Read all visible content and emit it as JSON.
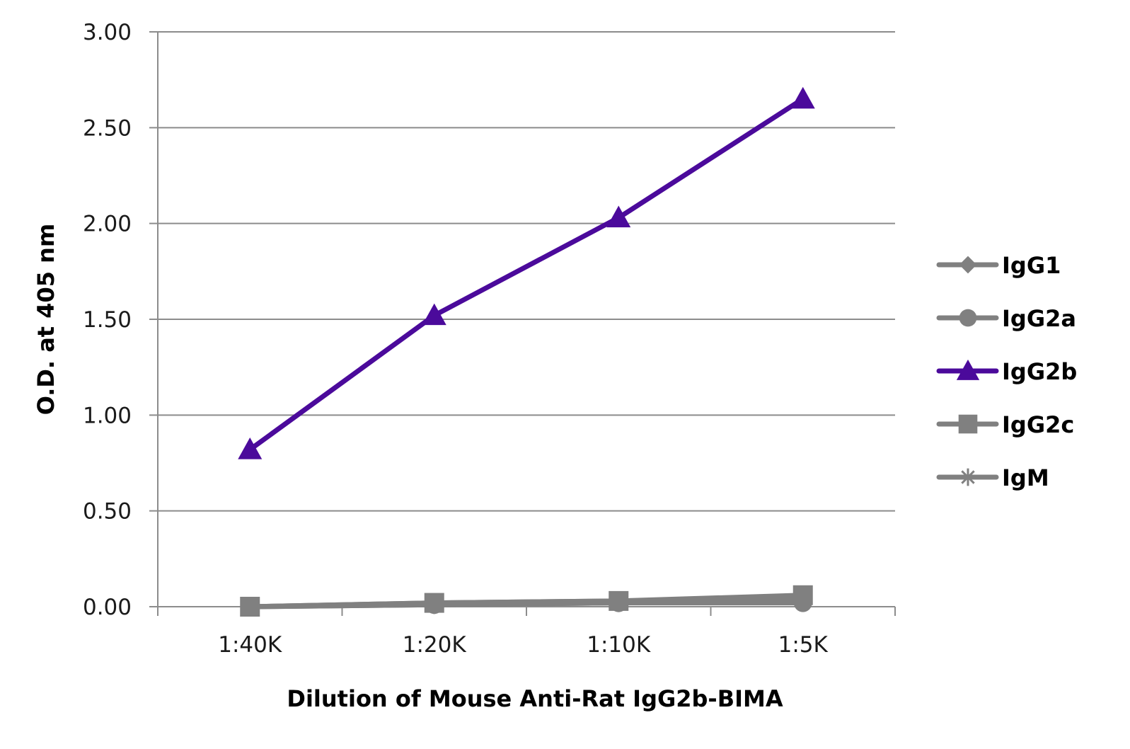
{
  "chart_data": {
    "type": "line",
    "title": "",
    "xlabel": "Dilution of Mouse Anti-Rat IgG2b-BIMA",
    "ylabel": "O.D. at 405 nm",
    "categories": [
      "1:40K",
      "1:20K",
      "1:10K",
      "1:5K"
    ],
    "ylim": [
      0,
      3.0
    ],
    "yticks": [
      "0.00",
      "0.50",
      "1.00",
      "1.50",
      "2.00",
      "2.50",
      "3.00"
    ],
    "grid": true,
    "legend": "right",
    "series": [
      {
        "name": "IgG1",
        "marker": "diamond",
        "color": "#808080",
        "values": [
          0.0,
          0.02,
          0.03,
          0.04
        ]
      },
      {
        "name": "IgG2a",
        "marker": "circle",
        "color": "#808080",
        "values": [
          0.0,
          0.01,
          0.02,
          0.02
        ]
      },
      {
        "name": "IgG2b",
        "marker": "triangle",
        "color": "#4b0a9b",
        "values": [
          0.82,
          1.52,
          2.03,
          2.65
        ]
      },
      {
        "name": "IgG2c",
        "marker": "square",
        "color": "#808080",
        "values": [
          0.0,
          0.02,
          0.03,
          0.06
        ]
      },
      {
        "name": "IgM",
        "marker": "star",
        "color": "#808080",
        "values": [
          0.0,
          0.01,
          0.02,
          0.03
        ]
      }
    ]
  }
}
